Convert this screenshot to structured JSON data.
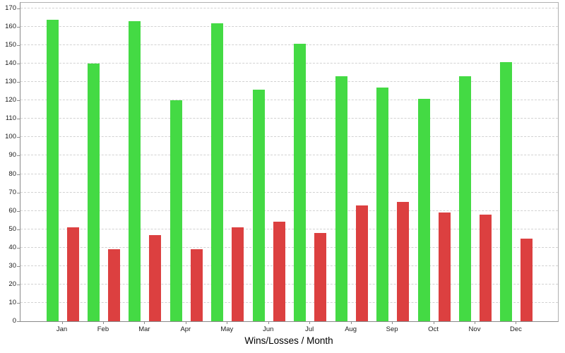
{
  "chart_data": {
    "type": "bar",
    "title": "Wins/Losses / Month",
    "xlabel": "",
    "ylabel": "",
    "categories": [
      "Jan",
      "Feb",
      "Mar",
      "Apr",
      "May",
      "Jun",
      "Jul",
      "Aug",
      "Sep",
      "Oct",
      "Nov",
      "Dec"
    ],
    "series": [
      {
        "name": "Wins",
        "color": "#44da44",
        "values": [
          164,
          140,
          163,
          120,
          162,
          126,
          151,
          133,
          127,
          121,
          133,
          141
        ]
      },
      {
        "name": "Losses",
        "color": "#dc4040",
        "values": [
          51,
          39,
          47,
          39,
          51,
          54,
          48,
          63,
          65,
          59,
          58,
          45
        ]
      }
    ],
    "ylim": [
      0,
      173
    ],
    "ytick_interval": 10,
    "ytick_labels": [
      "0",
      "10",
      "20",
      "30",
      "40",
      "50",
      "60",
      "70",
      "80",
      "90",
      "100",
      "110",
      "120",
      "130",
      "140",
      "150",
      "160",
      "170"
    ],
    "grid": "horizontal-dashed",
    "legend": "none",
    "style": {
      "background": "#ffffff",
      "gridline_color": "#d2d2d2",
      "axis_color": "#8a8a8a",
      "label_color": "#1a1a1a"
    }
  }
}
